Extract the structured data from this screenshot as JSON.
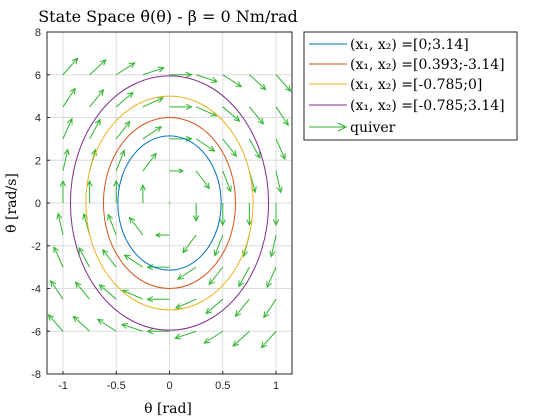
{
  "chart_data": {
    "type": "line",
    "title": "State Space θ̇(θ) - β = 0 Nm/rad",
    "xlabel": "θ [rad]",
    "ylabel": "θ̇ [rad/s]",
    "xlim": [
      -1.15,
      1.15
    ],
    "ylim": [
      -8,
      8
    ],
    "xticks": [
      "-1",
      "-0.5",
      "0",
      "0.5",
      "1"
    ],
    "xtick_values": [
      -1,
      -0.5,
      0,
      0.5,
      1
    ],
    "yticks": [
      "-8",
      "-6",
      "-4",
      "-2",
      "0",
      "2",
      "4",
      "6",
      "8"
    ],
    "ytick_values": [
      -8,
      -6,
      -4,
      -2,
      0,
      2,
      4,
      6,
      8
    ],
    "grid": true,
    "legend_position": "outside-top-right",
    "series": [
      {
        "name": "(x₁, x₂) =[0;3.14]",
        "color": "#0072BD",
        "theta_amp": 0.485,
        "omega_amp": 3.14
      },
      {
        "name": "(x₁, x₂) =[0.393;-3.14]",
        "color": "#D95319",
        "theta_amp": 0.62,
        "omega_amp": 4.0
      },
      {
        "name": "(x₁, x₂) =[-0.785;0]",
        "color": "#EDB120",
        "theta_amp": 0.785,
        "omega_amp": 5.0
      },
      {
        "name": "(x₁, x₂) =[-0.785;3.14]",
        "color": "#7E2F8E",
        "theta_amp": 0.93,
        "omega_amp": 5.95
      }
    ],
    "quiver": {
      "name": "quiver",
      "color": "#2DB52D",
      "x": [
        -1.0,
        -0.75,
        -0.5,
        -0.25,
        0,
        0.25,
        0.5,
        0.75,
        1.0
      ],
      "y": [
        -6,
        -4.5,
        -3,
        -1.5,
        0,
        1.5,
        3,
        4.5,
        6
      ]
    }
  }
}
